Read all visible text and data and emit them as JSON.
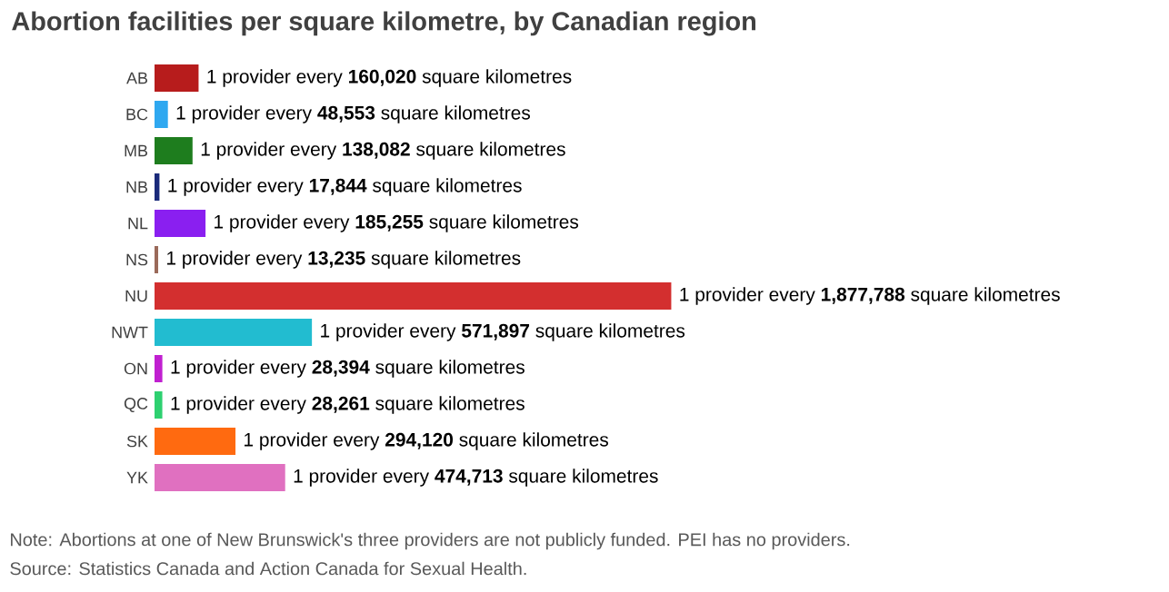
{
  "chart_data": {
    "type": "bar",
    "orientation": "horizontal",
    "title": "Abortion facilities per square kilometre, by Canadian region",
    "categories": [
      "AB",
      "BC",
      "MB",
      "NB",
      "NL",
      "NS",
      "NU",
      "NWT",
      "ON",
      "QC",
      "SK",
      "YK"
    ],
    "values": [
      160020,
      48553,
      138082,
      17844,
      185255,
      13235,
      1877788,
      571897,
      28394,
      28261,
      294120,
      474713
    ],
    "colors": [
      "#b71c1c",
      "#2fa8f0",
      "#1e7d1e",
      "#1a2a7a",
      "#8a1ff0",
      "#9a6a5a",
      "#d32f2f",
      "#22bcd0",
      "#c020d0",
      "#2ed070",
      "#ff6a10",
      "#e070c0"
    ],
    "value_labels": [
      "1 provider every **160,020** square kilometres",
      "1 provider every **48,553** square kilometres",
      "1 provider every **138,082** square kilometres",
      "1 provider every **17,844** square kilometres",
      "1 provider every **185,255** square kilometres",
      "1 provider every **13,235** square kilometres",
      "1 provider every **1,877,788** square kilometres",
      "1 provider every **571,897** square kilometres",
      "1 provider every **28,394** square kilometres",
      "1 provider every **28,261** square kilometres",
      "1 provider every **294,120** square kilometres",
      "1 provider every **474,713** square kilometres"
    ],
    "annotations": [
      "Note: Abortions at one of New Brunswick's three providers are not publicly funded. PEI has no providers.",
      "Source: Statistics Canada and Action Canada for Sexual Health."
    ]
  }
}
